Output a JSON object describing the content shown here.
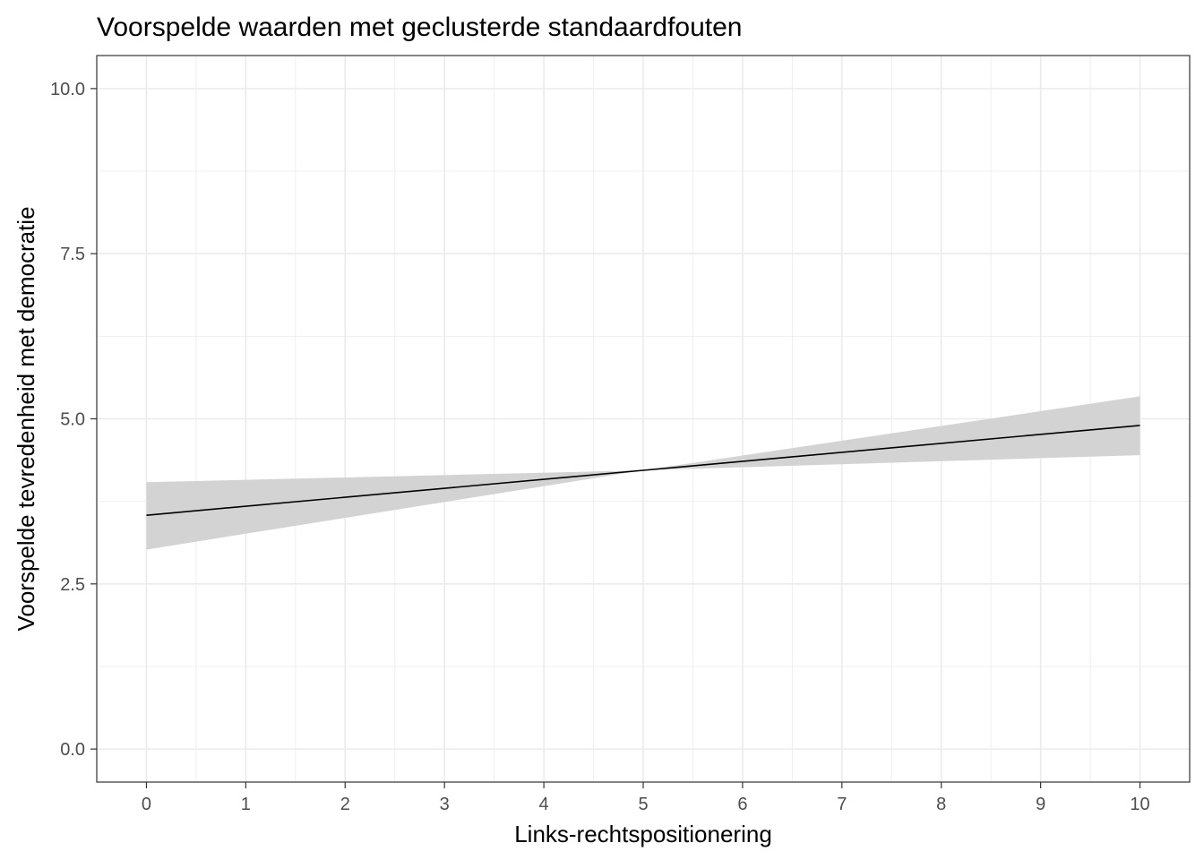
{
  "chart_data": {
    "type": "line",
    "title": "Voorspelde waarden met geclusterde standaardfouten",
    "xlabel": "Links-rechtspositionering",
    "ylabel": "Voorspelde tevredenheid met democratie",
    "xlim": [
      -0.5,
      10.5
    ],
    "ylim": [
      -0.5,
      10.5
    ],
    "x_ticks": [
      0,
      1,
      2,
      3,
      4,
      5,
      6,
      7,
      8,
      9,
      10
    ],
    "y_ticks": [
      0.0,
      2.5,
      5.0,
      7.5,
      10.0
    ],
    "y_tick_labels": [
      "0.0",
      "2.5",
      "5.0",
      "7.5",
      "10.0"
    ],
    "grid": true,
    "legend": "none",
    "series": [
      {
        "x": [
          0,
          5,
          10
        ],
        "values": [
          3.54,
          4.22,
          4.9
        ],
        "ci_lower": [
          3.02,
          4.22,
          4.45
        ],
        "ci_upper": [
          4.04,
          4.22,
          5.34
        ]
      }
    ],
    "colors": {
      "line": "#000000",
      "ribbon": "#d3d3d3",
      "grid": "#ebebeb",
      "border": "#333333"
    }
  }
}
